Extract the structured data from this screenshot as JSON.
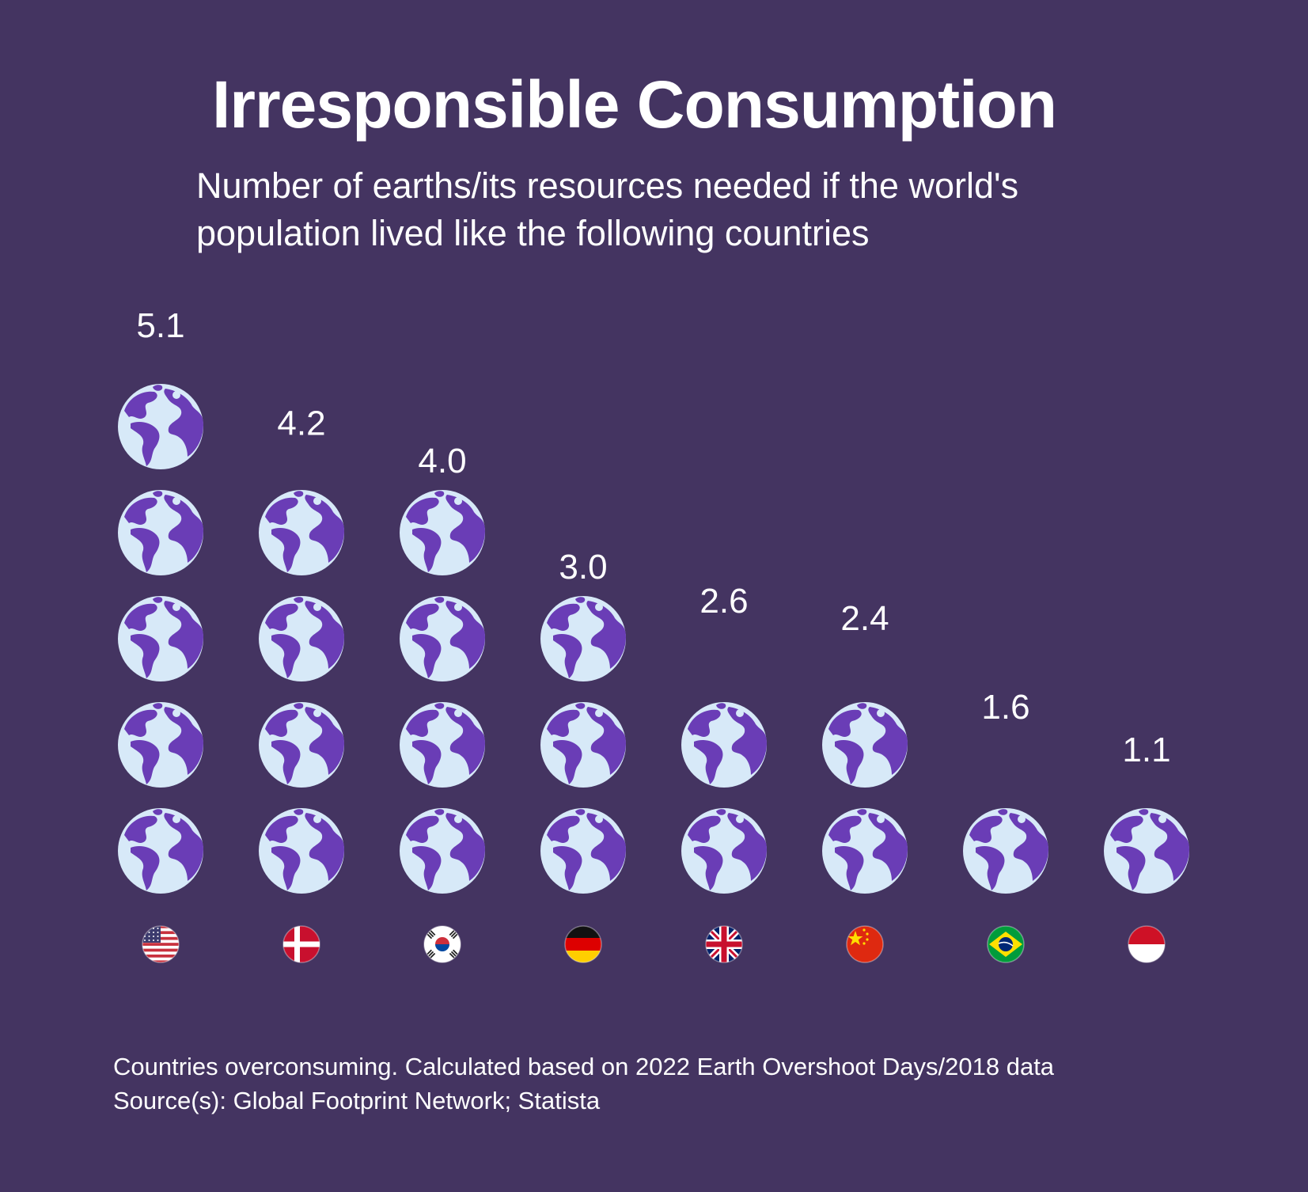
{
  "title": "Irresponsible Consumption",
  "subtitle": "Number of earths/its resources needed if the world's population lived like the following countries",
  "chart_data": {
    "type": "pictograph",
    "unit": "earths",
    "categories": [
      "United States",
      "Denmark",
      "South Korea",
      "Germany",
      "United Kingdom",
      "China",
      "Brazil",
      "Indonesia"
    ],
    "values": [
      5.1,
      4.2,
      4.0,
      3.0,
      2.6,
      2.4,
      1.6,
      1.1
    ],
    "value_labels": [
      "5.1",
      "4.2",
      "4.0",
      "3.0",
      "2.6",
      "2.4",
      "1.6",
      "1.1"
    ],
    "flag_icons": [
      "flag-us-icon",
      "flag-dk-icon",
      "flag-kr-icon",
      "flag-de-icon",
      "flag-gb-icon",
      "flag-cn-icon",
      "flag-br-icon",
      "flag-id-icon"
    ]
  },
  "footnote": {
    "line1": "Countries overconsuming. Calculated based on 2022 Earth Overshoot Days/2018 data",
    "line2": "Source(s): Global Footprint Network; Statista"
  },
  "colors": {
    "background": "#443461",
    "ocean": "#d7e9f8",
    "land": "#6a3db6",
    "text": "#ffffff"
  }
}
